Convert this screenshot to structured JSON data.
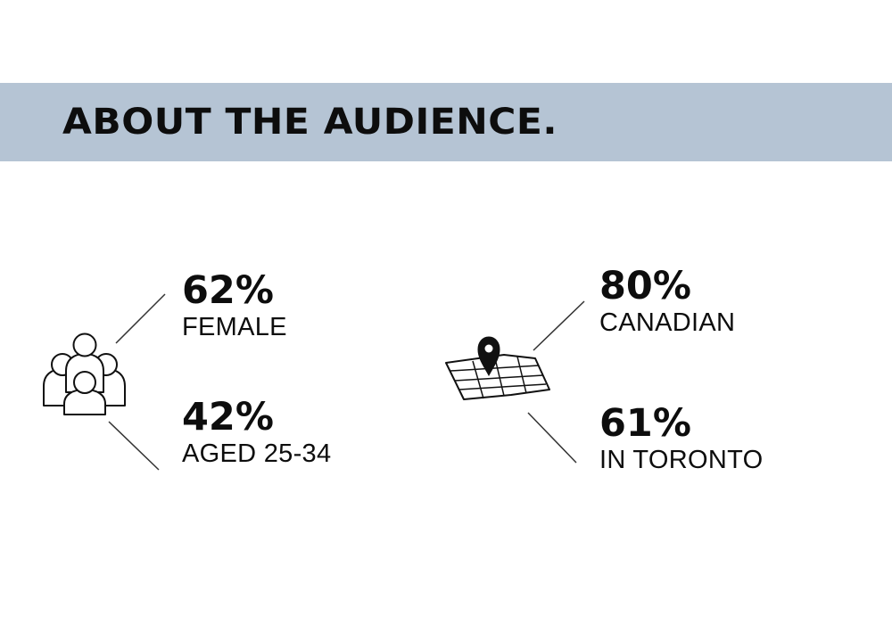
{
  "header": {
    "title": "ABOUT THE AUDIENCE.",
    "banner_color": "#b5c4d4"
  },
  "stats": [
    {
      "value": "62%",
      "label": "FEMALE"
    },
    {
      "value": "42%",
      "label": "AGED 25-34"
    },
    {
      "value": "80%",
      "label": "CANADIAN"
    },
    {
      "value": "61%",
      "label": "IN TORONTO"
    }
  ],
  "icons": {
    "audience": "people-group-icon",
    "location": "map-pin-icon"
  }
}
